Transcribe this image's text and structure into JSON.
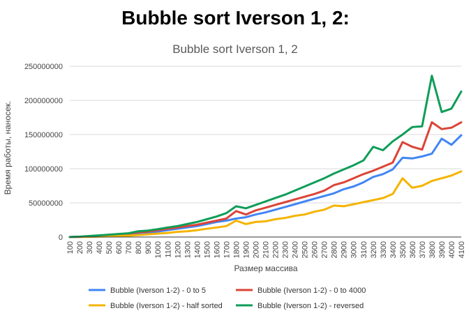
{
  "heading": "Bubble sort Iverson 1, 2:",
  "chart_data": {
    "type": "line",
    "title": "Bubble sort Iverson 1, 2",
    "xlabel": "Размер массива",
    "ylabel": "Время работы, наносек.",
    "ylim": [
      0,
      250000000
    ],
    "yticks": [
      "0",
      "50000000",
      "100000000",
      "150000000",
      "200000000",
      "250000000"
    ],
    "grid": true,
    "legend_position": "bottom",
    "x": [
      100,
      200,
      300,
      400,
      500,
      600,
      700,
      800,
      900,
      1000,
      1100,
      1200,
      1300,
      1400,
      1500,
      1600,
      1700,
      1800,
      1900,
      2000,
      2100,
      2200,
      2300,
      2400,
      2500,
      2600,
      2700,
      2800,
      2900,
      3000,
      3100,
      3200,
      3300,
      3400,
      3500,
      3600,
      3700,
      3800,
      3900,
      4000,
      4100
    ],
    "series": [
      {
        "name": "Bubble (Iverson 1-2) - 0 to 5",
        "color": "#4285f4",
        "values": [
          0,
          300000,
          800000,
          1500000,
          2500000,
          3200000,
          4000000,
          5500000,
          6500000,
          8000000,
          10000000,
          12000000,
          14000000,
          16000000,
          19000000,
          22000000,
          24000000,
          27000000,
          29000000,
          33000000,
          36000000,
          40000000,
          44000000,
          48000000,
          52000000,
          56000000,
          60000000,
          64000000,
          70000000,
          74000000,
          80000000,
          88000000,
          92000000,
          99000000,
          116000000,
          115000000,
          118000000,
          122000000,
          144000000,
          135000000,
          149000000
        ]
      },
      {
        "name": "Bubble (Iverson 1-2) - 0 to 4000",
        "color": "#db4437",
        "values": [
          0,
          400000,
          1000000,
          2000000,
          3000000,
          4000000,
          5000000,
          7000000,
          8000000,
          10000000,
          12000000,
          14000000,
          16000000,
          18000000,
          21000000,
          24000000,
          27000000,
          38000000,
          33000000,
          39000000,
          43000000,
          47000000,
          51000000,
          55000000,
          59000000,
          63000000,
          68000000,
          76000000,
          80000000,
          86000000,
          92000000,
          97000000,
          103000000,
          109000000,
          139000000,
          132000000,
          128000000,
          168000000,
          158000000,
          160000000,
          168000000
        ]
      },
      {
        "name": "Bubble (Iverson 1-2) - half sorted",
        "color": "#f4b400",
        "values": [
          0,
          100000,
          300000,
          600000,
          1000000,
          1500000,
          2000000,
          3000000,
          4000000,
          5000000,
          6000000,
          7500000,
          8500000,
          10000000,
          12000000,
          14000000,
          16000000,
          24000000,
          19000000,
          22000000,
          23000000,
          26000000,
          28000000,
          31000000,
          33000000,
          37000000,
          40000000,
          46000000,
          45000000,
          48000000,
          51000000,
          54000000,
          57000000,
          63000000,
          86000000,
          72000000,
          75000000,
          82000000,
          86000000,
          90000000,
          96000000
        ]
      },
      {
        "name": "Bubble (Iverson 1-2) - reversed",
        "color": "#0f9d58",
        "values": [
          0,
          500000,
          1500000,
          2500000,
          3500000,
          4500000,
          5500000,
          8500000,
          9500000,
          11500000,
          14000000,
          16000000,
          19000000,
          22000000,
          26000000,
          30000000,
          35000000,
          45000000,
          42000000,
          47000000,
          52000000,
          57000000,
          62000000,
          68000000,
          74000000,
          80000000,
          86000000,
          93000000,
          99000000,
          105000000,
          112000000,
          132000000,
          127000000,
          140000000,
          150000000,
          161000000,
          162000000,
          236000000,
          183000000,
          188000000,
          213000000
        ]
      }
    ]
  }
}
